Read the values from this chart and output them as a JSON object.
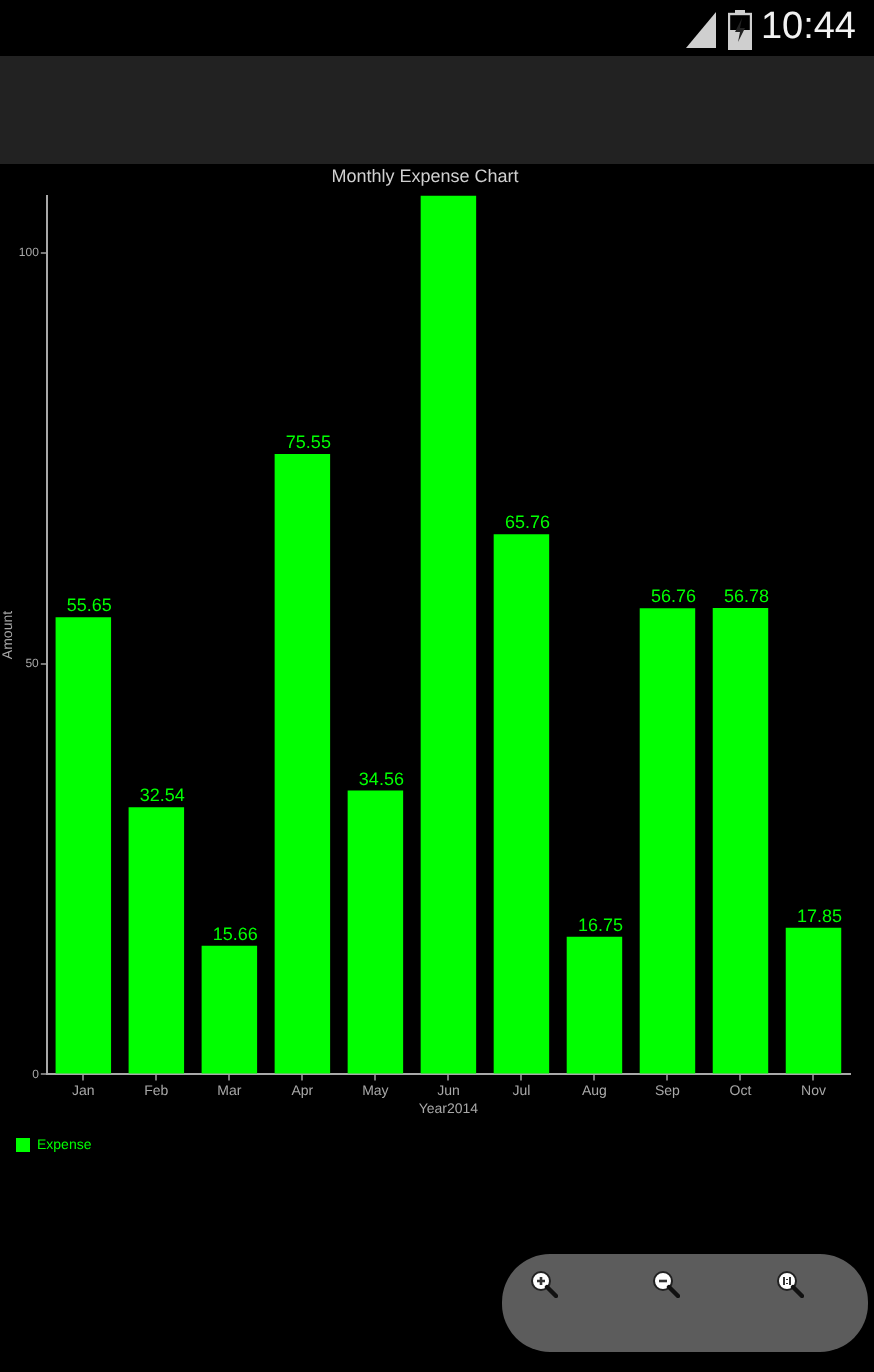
{
  "chart_data": {
    "type": "bar",
    "title": "Monthly Expense Chart",
    "xlabel": "Year2014",
    "ylabel": "Amount",
    "categories": [
      "Jan",
      "Feb",
      "Mar",
      "Apr",
      "May",
      "Jun",
      "Jul",
      "Aug",
      "Sep",
      "Oct",
      "Nov"
    ],
    "series": [
      {
        "name": "Expense",
        "color": "#00ff00",
        "values": [
          55.65,
          32.54,
          15.66,
          75.55,
          34.56,
          107,
          65.76,
          16.75,
          56.76,
          56.78,
          17.85
        ],
        "value_labels": [
          "55.65",
          "32.54",
          "15.66",
          "75.55",
          "34.56",
          null,
          "65.76",
          "16.75",
          "56.76",
          "56.78",
          "17.85"
        ]
      }
    ],
    "ylim": [
      0,
      107
    ],
    "yticks": [
      0,
      50,
      100
    ],
    "legend": "bottom left",
    "annotations": [
      "10:44"
    ]
  }
}
